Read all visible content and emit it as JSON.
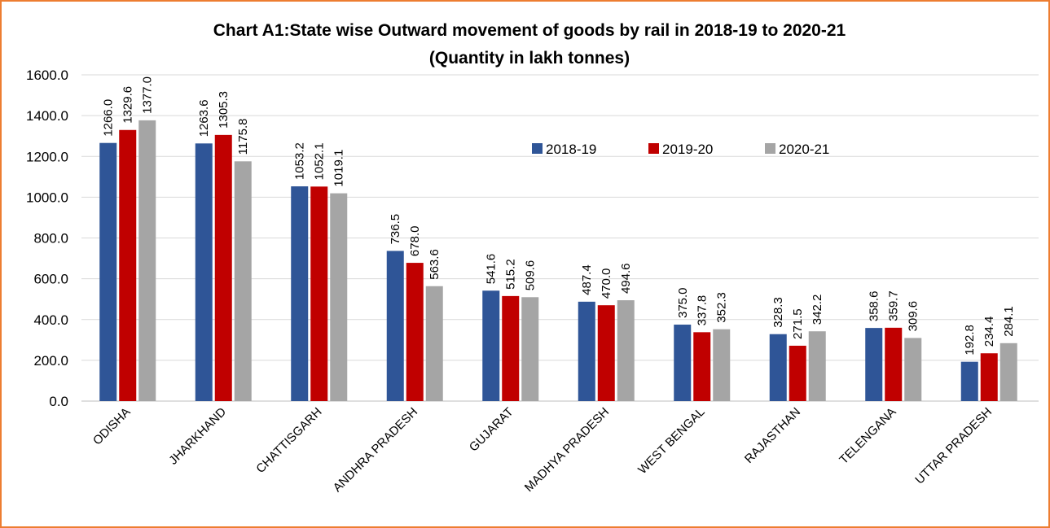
{
  "chart_data": {
    "type": "bar",
    "title_line1": "Chart A1:State wise Outward movement of goods by rail in 2018-19 to 2020-21",
    "title_line2": "(Quantity in lakh tonnes)",
    "xlabel": "",
    "ylabel": "",
    "ylim": [
      0,
      1600
    ],
    "yticks": [
      "0.0",
      "200.0",
      "400.0",
      "600.0",
      "800.0",
      "1000.0",
      "1200.0",
      "1400.0",
      "1600.0"
    ],
    "grid": true,
    "legend_position": "top-center",
    "categories": [
      "ODISHA",
      "JHARKHAND",
      "CHATTISGARH",
      "ANDHRA PRADESH",
      "GUJARAT",
      "MADHYA PRADESH",
      "WEST BENGAL",
      "RAJASTHAN",
      "TELENGANA",
      "UTTAR PRADESH"
    ],
    "series": [
      {
        "name": "2018-19",
        "color": "#2F5597",
        "values": [
          1266.0,
          1263.6,
          1053.2,
          736.5,
          541.6,
          487.4,
          375.0,
          328.3,
          358.6,
          192.8
        ],
        "labels": [
          "1266.0",
          "1263.6",
          "1053.2",
          "736.5",
          "541.6",
          "487.4",
          "375.0",
          "328.3",
          "358.6",
          "192.8"
        ]
      },
      {
        "name": "2019-20",
        "color": "#C00000",
        "values": [
          1329.6,
          1305.3,
          1052.1,
          678.0,
          515.2,
          470.0,
          337.8,
          271.5,
          359.7,
          234.4
        ],
        "labels": [
          "1329.6",
          "1305.3",
          "1052.1",
          "678.0",
          "515.2",
          "470.0",
          "337.8",
          "271.5",
          "359.7",
          "234.4"
        ]
      },
      {
        "name": "2020-21",
        "color": "#A5A5A5",
        "values": [
          1377.0,
          1175.8,
          1019.1,
          563.6,
          509.6,
          494.6,
          352.3,
          342.2,
          309.6,
          284.1
        ],
        "labels": [
          "1377.0",
          "1175.8",
          "1019.1",
          "563.6",
          "509.6",
          "494.6",
          "352.3",
          "342.2",
          "309.6",
          "284.1"
        ]
      }
    ]
  },
  "colors": {
    "frame_border": "#ED7D31",
    "gridline": "#D9D9D9",
    "axis": "#BFBFBF"
  }
}
